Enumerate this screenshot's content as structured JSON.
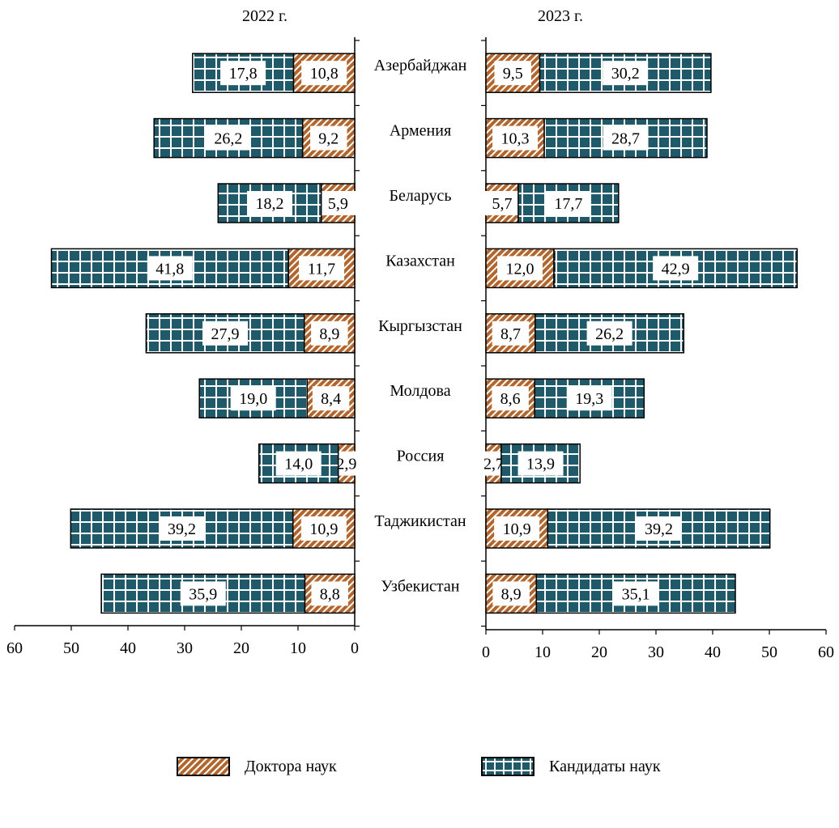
{
  "chart_data": {
    "type": "bar",
    "orientation": "horizontal",
    "stacked": true,
    "categories": [
      "Азербайджан",
      "Армения",
      "Беларусь",
      "Казахстан",
      "Кыргызстан",
      "Молдова",
      "Россия",
      "Таджикистан",
      "Узбекистан"
    ],
    "panels": [
      {
        "title": "2022 г.",
        "direction": "reversed",
        "xlim": [
          0,
          60
        ],
        "ticks": [
          "0",
          "10",
          "20",
          "30",
          "40",
          "50",
          "60"
        ],
        "series": [
          {
            "name": "Доктора наук",
            "values": [
              10.8,
              9.2,
              5.9,
              11.7,
              8.9,
              8.4,
              2.9,
              10.9,
              8.8
            ],
            "labels": [
              "10,8",
              "9,2",
              "5,9",
              "11,7",
              "8,9",
              "8,4",
              "2,9",
              "10,9",
              "8,8"
            ]
          },
          {
            "name": "Кандидаты наук",
            "values": [
              17.8,
              26.2,
              18.2,
              41.8,
              27.9,
              19.0,
              14.0,
              39.2,
              35.9
            ],
            "labels": [
              "17,8",
              "26,2",
              "18,2",
              "41,8",
              "27,9",
              "19,0",
              "14,0",
              "39,2",
              "35,9"
            ]
          }
        ]
      },
      {
        "title": "2023 г.",
        "direction": "normal",
        "xlim": [
          0,
          60
        ],
        "ticks": [
          "0",
          "10",
          "20",
          "30",
          "40",
          "50",
          "60"
        ],
        "series": [
          {
            "name": "Доктора наук",
            "values": [
              9.5,
              10.3,
              5.7,
              12.0,
              8.7,
              8.6,
              2.7,
              10.9,
              8.9
            ],
            "labels": [
              "9,5",
              "10,3",
              "5,7",
              "12,0",
              "8,7",
              "8,6",
              "2,7",
              "10,9",
              "8,9"
            ]
          },
          {
            "name": "Кандидаты наук",
            "values": [
              30.2,
              28.7,
              17.7,
              42.9,
              26.2,
              19.3,
              13.9,
              39.2,
              35.1
            ],
            "labels": [
              "30,2",
              "28,7",
              "17,7",
              "42,9",
              "26,2",
              "19,3",
              "13,9",
              "39,2",
              "35,1"
            ]
          }
        ]
      }
    ],
    "legend": {
      "position": "bottom",
      "items": [
        {
          "name": "Доктора наук",
          "pattern": "diagonal-hatch",
          "color": "#b5652a"
        },
        {
          "name": "Кандидаты наук",
          "pattern": "grid",
          "color": "#1e5a69"
        }
      ]
    },
    "colors": {
      "doctors": "#b5652a",
      "candidates": "#1e5a69",
      "grid_line": "#ffffff",
      "axis": "#000000"
    }
  }
}
